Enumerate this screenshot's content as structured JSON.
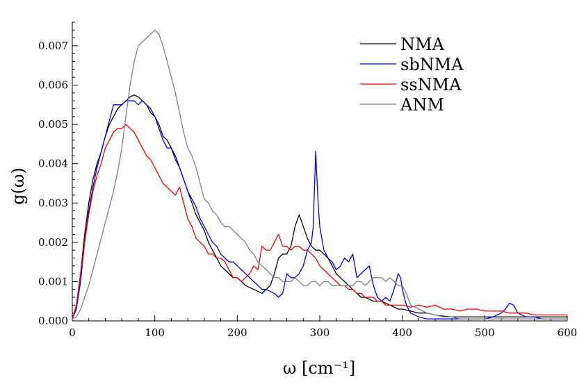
{
  "chart_data": {
    "type": "line",
    "xlabel": "ω [cm⁻¹]",
    "ylabel": "g(ω)",
    "xlim": [
      0,
      600
    ],
    "ylim": [
      0,
      0.0076
    ],
    "xticks": [
      "0",
      "100",
      "200",
      "300",
      "400",
      "500",
      "600"
    ],
    "yticks": [
      "0.000",
      "0.001",
      "0.002",
      "0.003",
      "0.004",
      "0.005",
      "0.006",
      "0.007"
    ],
    "legend_position": "top-right",
    "grid": false,
    "series": [
      {
        "name": "NMA",
        "color": "#000000",
        "x": [
          0,
          5,
          10,
          15,
          20,
          25,
          30,
          35,
          40,
          45,
          50,
          55,
          60,
          65,
          70,
          75,
          80,
          85,
          90,
          95,
          100,
          105,
          110,
          115,
          120,
          125,
          130,
          135,
          140,
          145,
          150,
          155,
          160,
          165,
          170,
          175,
          180,
          185,
          190,
          195,
          200,
          205,
          210,
          215,
          220,
          225,
          230,
          235,
          240,
          245,
          250,
          255,
          260,
          265,
          270,
          275,
          280,
          285,
          290,
          295,
          300,
          305,
          310,
          315,
          320,
          325,
          330,
          335,
          340,
          345,
          350,
          355,
          360,
          365,
          370,
          375,
          380,
          385,
          390,
          395,
          400,
          410,
          420,
          430,
          440,
          450,
          460,
          470,
          480,
          490,
          500,
          510,
          520,
          530,
          540,
          550,
          560,
          570,
          580,
          590,
          600
        ],
        "y": [
          5e-05,
          0.0004,
          0.0012,
          0.0022,
          0.003,
          0.0036,
          0.004,
          0.0043,
          0.0047,
          0.005,
          0.0052,
          0.0054,
          0.0055,
          0.0056,
          0.0057,
          0.00575,
          0.0057,
          0.0056,
          0.0055,
          0.0053,
          0.0052,
          0.005,
          0.0047,
          0.0046,
          0.0044,
          0.0042,
          0.0039,
          0.0036,
          0.0033,
          0.003,
          0.0027,
          0.0025,
          0.0023,
          0.002,
          0.0018,
          0.0016,
          0.0014,
          0.0013,
          0.0012,
          0.0011,
          0.0011,
          0.001,
          0.0009,
          0.00085,
          0.0008,
          0.00075,
          0.0007,
          0.0008,
          0.0009,
          0.0012,
          0.0016,
          0.0017,
          0.0017,
          0.0019,
          0.0024,
          0.0027,
          0.0024,
          0.0021,
          0.0019,
          0.0018,
          0.0018,
          0.0017,
          0.0016,
          0.0014,
          0.0012,
          0.0011,
          0.001,
          0.0009,
          0.0008,
          0.0007,
          0.0006,
          0.0006,
          0.00055,
          0.0005,
          0.0005,
          0.0005,
          0.00045,
          0.0004,
          0.00035,
          0.0003,
          0.0003,
          0.00025,
          0.0002,
          0.0002,
          0.00015,
          0.00012,
          0.0001,
          0.0001,
          0.0001,
          0.0001,
          0.0001,
          0.0001,
          0.0001,
          0.0001,
          0.0001,
          0.0001,
          0.0001,
          0.0001,
          0.0001,
          0.0001,
          0.0001
        ]
      },
      {
        "name": "sbNMA",
        "color": "#0000dd",
        "x": [
          0,
          5,
          10,
          15,
          20,
          25,
          30,
          35,
          40,
          45,
          50,
          55,
          60,
          65,
          70,
          75,
          80,
          85,
          90,
          95,
          100,
          105,
          110,
          115,
          120,
          125,
          130,
          135,
          140,
          145,
          150,
          155,
          160,
          165,
          170,
          175,
          180,
          185,
          190,
          195,
          200,
          205,
          210,
          215,
          220,
          225,
          230,
          235,
          240,
          245,
          250,
          255,
          260,
          265,
          270,
          275,
          280,
          285,
          290,
          292,
          295,
          298,
          300,
          305,
          310,
          315,
          320,
          325,
          330,
          335,
          340,
          345,
          350,
          355,
          360,
          365,
          370,
          375,
          380,
          385,
          390,
          395,
          398,
          400,
          405,
          410,
          420,
          430,
          440,
          450,
          460,
          470,
          480,
          490,
          500,
          510,
          520,
          525,
          530,
          535,
          540,
          550,
          560,
          570,
          580,
          590,
          600
        ],
        "y": [
          5e-05,
          0.0003,
          0.001,
          0.002,
          0.0028,
          0.0034,
          0.0039,
          0.0043,
          0.0047,
          0.0051,
          0.0055,
          0.0055,
          0.0055,
          0.0056,
          0.0056,
          0.0056,
          0.0055,
          0.0056,
          0.0055,
          0.0054,
          0.0052,
          0.0049,
          0.0046,
          0.0044,
          0.0044,
          0.0041,
          0.0039,
          0.0036,
          0.0033,
          0.0031,
          0.0029,
          0.0026,
          0.0024,
          0.0022,
          0.002,
          0.0019,
          0.0017,
          0.0016,
          0.0015,
          0.0015,
          0.0014,
          0.0013,
          0.0012,
          0.0011,
          0.001,
          0.0009,
          0.0008,
          0.0008,
          0.00075,
          0.0007,
          0.0006,
          0.0007,
          0.0012,
          0.0011,
          0.0011,
          0.0012,
          0.0014,
          0.0018,
          0.002,
          0.0024,
          0.00432,
          0.003,
          0.0024,
          0.0018,
          0.0016,
          0.0015,
          0.0013,
          0.0014,
          0.0016,
          0.0015,
          0.0017,
          0.0011,
          0.0012,
          0.0013,
          0.0014,
          0.0009,
          0.0006,
          0.0005,
          0.0006,
          0.0005,
          0.0008,
          0.0012,
          0.0011,
          0.0008,
          0.0004,
          0.0002,
          0.0001,
          5e-05,
          5e-05,
          5e-05,
          5e-05,
          5e-05,
          5e-05,
          5e-05,
          5e-05,
          0.0001,
          0.0002,
          0.0003,
          0.00045,
          0.0004,
          0.0002,
          0.0001,
          0.0001,
          5e-05,
          5e-05,
          5e-05,
          5e-05
        ]
      },
      {
        "name": "ssNMA",
        "color": "#ee0000",
        "x": [
          0,
          5,
          10,
          15,
          20,
          25,
          30,
          35,
          40,
          45,
          50,
          55,
          60,
          65,
          70,
          75,
          80,
          85,
          90,
          95,
          100,
          105,
          110,
          115,
          120,
          125,
          130,
          135,
          140,
          145,
          150,
          155,
          160,
          165,
          170,
          175,
          180,
          185,
          190,
          195,
          200,
          205,
          210,
          215,
          220,
          225,
          230,
          235,
          240,
          245,
          250,
          255,
          260,
          265,
          270,
          275,
          280,
          285,
          290,
          295,
          300,
          305,
          310,
          315,
          320,
          325,
          330,
          335,
          340,
          345,
          350,
          355,
          360,
          365,
          370,
          375,
          380,
          385,
          390,
          395,
          400,
          410,
          420,
          430,
          440,
          450,
          460,
          470,
          480,
          490,
          500,
          510,
          520,
          530,
          540,
          550,
          560,
          570,
          580,
          590,
          600
        ],
        "y": [
          5e-05,
          0.0004,
          0.0012,
          0.002,
          0.0027,
          0.0033,
          0.0037,
          0.004,
          0.0044,
          0.0046,
          0.0048,
          0.0049,
          0.0049,
          0.005,
          0.0049,
          0.0048,
          0.0046,
          0.0044,
          0.0042,
          0.0041,
          0.0039,
          0.0037,
          0.0035,
          0.0034,
          0.0033,
          0.0032,
          0.0034,
          0.003,
          0.0026,
          0.0024,
          0.0021,
          0.002,
          0.0019,
          0.0017,
          0.0017,
          0.0016,
          0.0016,
          0.0015,
          0.0013,
          0.0011,
          0.0011,
          0.001,
          0.0011,
          0.0012,
          0.0014,
          0.0013,
          0.0019,
          0.0018,
          0.0018,
          0.002,
          0.0022,
          0.0019,
          0.0019,
          0.0018,
          0.0019,
          0.0019,
          0.0018,
          0.0018,
          0.0017,
          0.0016,
          0.0014,
          0.0013,
          0.0012,
          0.0011,
          0.001,
          0.0009,
          0.0009,
          0.0008,
          0.0008,
          0.0007,
          0.0007,
          0.0006,
          0.0006,
          0.0006,
          0.0005,
          0.0005,
          0.0004,
          0.0004,
          0.0004,
          0.0004,
          0.0004,
          0.00035,
          0.0004,
          0.00035,
          0.0004,
          0.0003,
          0.0003,
          0.00025,
          0.0003,
          0.0003,
          0.00025,
          0.00025,
          0.00025,
          0.0002,
          0.0002,
          0.0002,
          0.00015,
          0.00015,
          0.00015,
          0.00015,
          0.00015
        ]
      },
      {
        "name": "ANM",
        "color": "#808080",
        "x": [
          0,
          5,
          10,
          15,
          20,
          25,
          30,
          35,
          40,
          45,
          50,
          55,
          60,
          65,
          70,
          75,
          80,
          85,
          90,
          95,
          100,
          105,
          110,
          115,
          120,
          125,
          130,
          135,
          140,
          145,
          150,
          155,
          160,
          165,
          170,
          175,
          180,
          185,
          190,
          195,
          200,
          205,
          210,
          215,
          220,
          225,
          230,
          235,
          240,
          245,
          250,
          255,
          260,
          265,
          270,
          275,
          280,
          285,
          290,
          295,
          300,
          305,
          310,
          315,
          320,
          325,
          330,
          335,
          340,
          345,
          350,
          355,
          360,
          365,
          370,
          375,
          380,
          385,
          390,
          395,
          400,
          405,
          410,
          420,
          430,
          440,
          450,
          460,
          470,
          480,
          490,
          500,
          510,
          520,
          530,
          540,
          550,
          560,
          570,
          580,
          590,
          600
        ],
        "y": [
          5e-05,
          0.0001,
          0.0003,
          0.0006,
          0.0009,
          0.0013,
          0.0017,
          0.0021,
          0.0025,
          0.0029,
          0.0033,
          0.0038,
          0.0044,
          0.0052,
          0.006,
          0.0066,
          0.007,
          0.0071,
          0.0072,
          0.0073,
          0.0074,
          0.0073,
          0.007,
          0.0066,
          0.0062,
          0.0058,
          0.0053,
          0.0048,
          0.0044,
          0.0042,
          0.0039,
          0.0035,
          0.0031,
          0.003,
          0.0028,
          0.0027,
          0.0025,
          0.0024,
          0.0024,
          0.0023,
          0.0022,
          0.0021,
          0.002,
          0.0018,
          0.0017,
          0.0015,
          0.0014,
          0.0013,
          0.0012,
          0.0011,
          0.0011,
          0.001,
          0.001,
          0.001,
          0.0011,
          0.001,
          0.0009,
          0.0009,
          0.001,
          0.001,
          0.0009,
          0.001,
          0.001,
          0.0009,
          0.0009,
          0.0009,
          0.0009,
          0.0009,
          0.0009,
          0.001,
          0.001,
          0.0009,
          0.001,
          0.0011,
          0.0011,
          0.0011,
          0.001,
          0.0011,
          0.001,
          0.0009,
          0.0009,
          0.0007,
          0.0004,
          0.0003,
          0.0002,
          0.00015,
          0.0001,
          0.0001,
          5e-05,
          5e-05,
          5e-05,
          5e-05,
          5e-05,
          5e-05,
          5e-05,
          5e-05,
          5e-05,
          5e-05,
          5e-05,
          5e-05,
          5e-05,
          5e-05
        ]
      }
    ]
  }
}
